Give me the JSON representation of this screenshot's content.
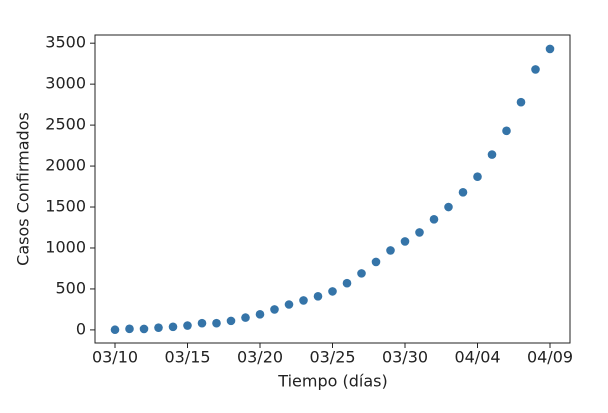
{
  "chart_data": {
    "type": "scatter",
    "xlabel": "Tiempo (días)",
    "ylabel": "Casos Confirmados",
    "x": [
      "03/10",
      "03/11",
      "03/12",
      "03/13",
      "03/14",
      "03/15",
      "03/16",
      "03/17",
      "03/18",
      "03/19",
      "03/20",
      "03/21",
      "03/22",
      "03/23",
      "03/24",
      "03/25",
      "03/26",
      "03/27",
      "03/28",
      "03/29",
      "03/30",
      "03/31",
      "04/01",
      "04/02",
      "04/03",
      "04/04",
      "04/05",
      "04/06",
      "04/07",
      "04/08",
      "04/09"
    ],
    "values": [
      2,
      13,
      12,
      27,
      38,
      53,
      82,
      82,
      110,
      150,
      190,
      250,
      310,
      360,
      410,
      470,
      570,
      690,
      830,
      970,
      1080,
      1190,
      1350,
      1500,
      1680,
      1870,
      2140,
      2430,
      2780,
      3180,
      3430
    ],
    "color": "#3574a8",
    "xticks": [
      "03/10",
      "03/15",
      "03/20",
      "03/25",
      "03/30",
      "04/04",
      "04/09"
    ],
    "ylim": [
      -160,
      3600
    ],
    "yticks": [
      0,
      500,
      1000,
      1500,
      2000,
      2500,
      3000,
      3500
    ]
  }
}
